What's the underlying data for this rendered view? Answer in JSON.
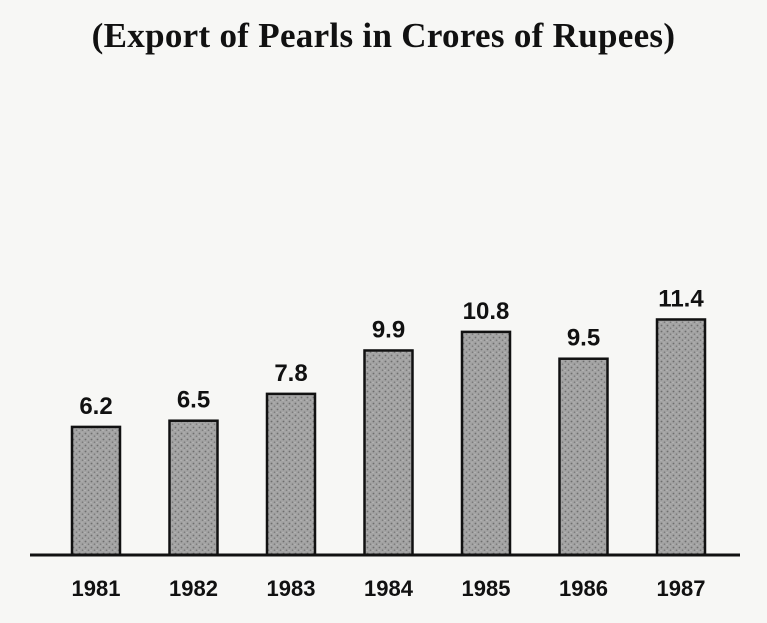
{
  "chart_data": {
    "type": "bar",
    "title": "(Export of Pearls in Crores of Rupees)",
    "categories": [
      "1981",
      "1982",
      "1983",
      "1984",
      "1985",
      "1986",
      "1987"
    ],
    "values": [
      6.2,
      6.5,
      7.8,
      9.9,
      10.8,
      9.5,
      11.4
    ],
    "xlabel": "",
    "ylabel": "",
    "ylim": [
      0,
      12
    ],
    "grid": false,
    "legend": "none",
    "colors": {
      "bar_fill": "#9a9a9a",
      "bar_stroke": "#111111",
      "axis": "#111111"
    }
  }
}
